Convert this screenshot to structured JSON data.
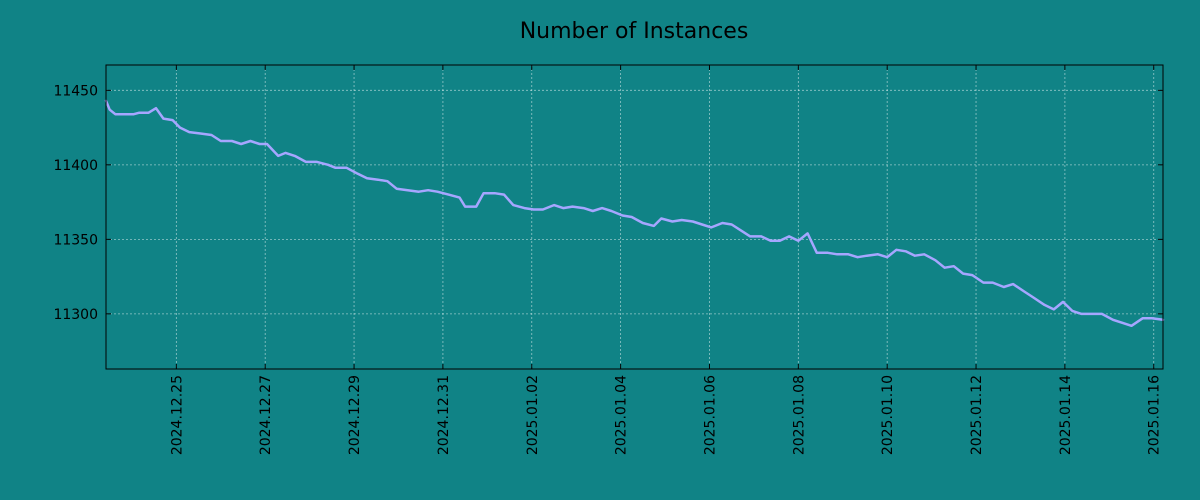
{
  "colors": {
    "background": "#108386",
    "series": "#a6a6ff"
  },
  "chart_data": {
    "type": "line",
    "title": "Number of Instances",
    "xlabel": "",
    "ylabel": "",
    "grid": true,
    "legend": "none",
    "xlim": [
      "2024-12-23T10:00",
      "2025-01-16T05:00"
    ],
    "ylim": [
      11263,
      11467
    ],
    "y_ticks": [
      11300,
      11350,
      11400,
      11450
    ],
    "x_ticks": [
      "2024.12.25",
      "2024.12.27",
      "2024.12.29",
      "2024.12.31",
      "2025.01.02",
      "2025.01.04",
      "2025.01.06",
      "2025.01.08",
      "2025.01.10",
      "2025.01.12",
      "2025.01.14",
      "2025.01.16"
    ],
    "x_tick_dates": [
      "2024-12-25T00:00",
      "2024-12-27T00:00",
      "2024-12-29T00:00",
      "2024-12-31T00:00",
      "2025-01-02T00:00",
      "2025-01-04T00:00",
      "2025-01-06T00:00",
      "2025-01-08T00:00",
      "2025-01-10T00:00",
      "2025-01-12T00:00",
      "2025-01-14T00:00",
      "2025-01-16T00:00"
    ],
    "series": [
      {
        "points": [
          [
            "2024-12-23T10:00",
            11443
          ],
          [
            "2024-12-23T12:00",
            11437
          ],
          [
            "2024-12-23T15:00",
            11434
          ],
          [
            "2024-12-23T21:00",
            11434
          ],
          [
            "2024-12-24T01:00",
            11434
          ],
          [
            "2024-12-24T04:00",
            11435
          ],
          [
            "2024-12-24T09:00",
            11435
          ],
          [
            "2024-12-24T13:00",
            11438
          ],
          [
            "2024-12-24T17:00",
            11431
          ],
          [
            "2024-12-24T22:00",
            11430
          ],
          [
            "2024-12-25T02:00",
            11425
          ],
          [
            "2024-12-25T07:00",
            11422
          ],
          [
            "2024-12-25T13:00",
            11421
          ],
          [
            "2024-12-25T19:00",
            11420
          ],
          [
            "2024-12-26T00:00",
            11416
          ],
          [
            "2024-12-26T06:00",
            11416
          ],
          [
            "2024-12-26T11:00",
            11414
          ],
          [
            "2024-12-26T16:00",
            11416
          ],
          [
            "2024-12-26T21:00",
            11414
          ],
          [
            "2024-12-27T01:00",
            11414
          ],
          [
            "2024-12-27T07:00",
            11406
          ],
          [
            "2024-12-27T11:00",
            11408
          ],
          [
            "2024-12-27T16:00",
            11406
          ],
          [
            "2024-12-27T22:00",
            11402
          ],
          [
            "2024-12-28T04:00",
            11402
          ],
          [
            "2024-12-28T10:00",
            11400
          ],
          [
            "2024-12-28T14:00",
            11398
          ],
          [
            "2024-12-28T20:00",
            11398
          ],
          [
            "2024-12-29T02:00",
            11394
          ],
          [
            "2024-12-29T07:00",
            11391
          ],
          [
            "2024-12-29T13:00",
            11390
          ],
          [
            "2024-12-29T18:00",
            11389
          ],
          [
            "2024-12-29T23:00",
            11384
          ],
          [
            "2024-12-30T05:00",
            11383
          ],
          [
            "2024-12-30T11:00",
            11382
          ],
          [
            "2024-12-30T16:00",
            11383
          ],
          [
            "2024-12-30T21:00",
            11382
          ],
          [
            "2024-12-31T03:00",
            11380
          ],
          [
            "2024-12-31T09:00",
            11378
          ],
          [
            "2024-12-31T12:00",
            11372
          ],
          [
            "2024-12-31T18:00",
            11372
          ],
          [
            "2024-12-31T22:00",
            11381
          ],
          [
            "2025-01-01T04:00",
            11381
          ],
          [
            "2025-01-01T09:00",
            11380
          ],
          [
            "2025-01-01T14:00",
            11373
          ],
          [
            "2025-01-01T20:00",
            11371
          ],
          [
            "2025-01-02T01:00",
            11370
          ],
          [
            "2025-01-02T06:00",
            11370
          ],
          [
            "2025-01-02T12:00",
            11373
          ],
          [
            "2025-01-02T17:00",
            11371
          ],
          [
            "2025-01-02T22:00",
            11372
          ],
          [
            "2025-01-03T04:00",
            11371
          ],
          [
            "2025-01-03T09:00",
            11369
          ],
          [
            "2025-01-03T14:00",
            11371
          ],
          [
            "2025-01-03T19:00",
            11369
          ],
          [
            "2025-01-04T01:00",
            11366
          ],
          [
            "2025-01-04T06:00",
            11365
          ],
          [
            "2025-01-04T12:00",
            11361
          ],
          [
            "2025-01-04T18:00",
            11359
          ],
          [
            "2025-01-04T22:00",
            11364
          ],
          [
            "2025-01-05T04:00",
            11362
          ],
          [
            "2025-01-05T09:00",
            11363
          ],
          [
            "2025-01-05T15:00",
            11362
          ],
          [
            "2025-01-05T20:00",
            11360
          ],
          [
            "2025-01-06T01:00",
            11358
          ],
          [
            "2025-01-06T07:00",
            11361
          ],
          [
            "2025-01-06T12:00",
            11360
          ],
          [
            "2025-01-06T17:00",
            11356
          ],
          [
            "2025-01-06T22:00",
            11352
          ],
          [
            "2025-01-07T04:00",
            11352
          ],
          [
            "2025-01-07T09:00",
            11349
          ],
          [
            "2025-01-07T14:00",
            11349
          ],
          [
            "2025-01-07T19:00",
            11352
          ],
          [
            "2025-01-08T00:00",
            11349
          ],
          [
            "2025-01-08T05:00",
            11354
          ],
          [
            "2025-01-08T10:00",
            11341
          ],
          [
            "2025-01-08T16:00",
            11341
          ],
          [
            "2025-01-08T21:00",
            11340
          ],
          [
            "2025-01-09T03:00",
            11340
          ],
          [
            "2025-01-09T08:00",
            11338
          ],
          [
            "2025-01-09T13:00",
            11339
          ],
          [
            "2025-01-09T19:00",
            11340
          ],
          [
            "2025-01-10T00:00",
            11338
          ],
          [
            "2025-01-10T05:00",
            11343
          ],
          [
            "2025-01-10T10:00",
            11342
          ],
          [
            "2025-01-10T15:00",
            11339
          ],
          [
            "2025-01-10T20:00",
            11340
          ],
          [
            "2025-01-11T02:00",
            11336
          ],
          [
            "2025-01-11T07:00",
            11331
          ],
          [
            "2025-01-11T12:00",
            11332
          ],
          [
            "2025-01-11T17:00",
            11327
          ],
          [
            "2025-01-11T22:00",
            11326
          ],
          [
            "2025-01-12T04:00",
            11321
          ],
          [
            "2025-01-12T09:00",
            11321
          ],
          [
            "2025-01-12T15:00",
            11318
          ],
          [
            "2025-01-12T20:00",
            11320
          ],
          [
            "2025-01-13T02:00",
            11315
          ],
          [
            "2025-01-13T07:00",
            11311
          ],
          [
            "2025-01-13T13:00",
            11306
          ],
          [
            "2025-01-13T18:00",
            11303
          ],
          [
            "2025-01-13T23:00",
            11308
          ],
          [
            "2025-01-14T04:00",
            11302
          ],
          [
            "2025-01-14T09:00",
            11300
          ],
          [
            "2025-01-14T15:00",
            11300
          ],
          [
            "2025-01-14T20:00",
            11300
          ],
          [
            "2025-01-15T02:00",
            11296
          ],
          [
            "2025-01-15T07:00",
            11294
          ],
          [
            "2025-01-15T12:00",
            11292
          ],
          [
            "2025-01-15T18:00",
            11297
          ],
          [
            "2025-01-15T23:00",
            11297
          ],
          [
            "2025-01-16T05:00",
            11296
          ]
        ]
      }
    ]
  }
}
